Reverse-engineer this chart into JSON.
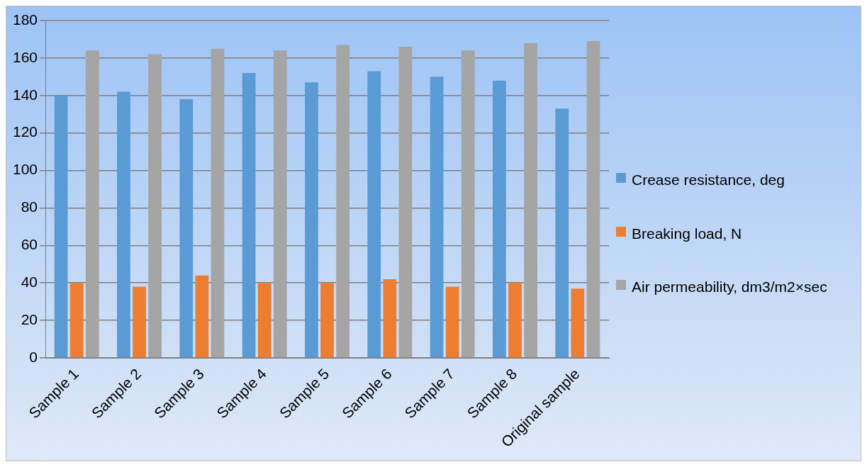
{
  "chart_data": {
    "type": "bar",
    "categories": [
      "Sample 1",
      "Sample 2",
      "Sample 3",
      "Sample 4",
      "Sample 5",
      "Sample 6",
      "Sample 7",
      "Sample 8",
      "Original sample"
    ],
    "series": [
      {
        "name": "Crease resistance, deg",
        "color": "#5b9bd5",
        "values": [
          140,
          142,
          138,
          152,
          147,
          153,
          150,
          148,
          133
        ]
      },
      {
        "name": "Breaking load, N",
        "color": "#ed7d31",
        "values": [
          40,
          38,
          44,
          40,
          40,
          42,
          38,
          40,
          37
        ]
      },
      {
        "name": "Air permeability, dm3/m2×sec",
        "color": "#a5a5a5",
        "values": [
          164,
          162,
          165,
          164,
          167,
          166,
          164,
          168,
          169
        ]
      }
    ],
    "ylim": [
      0,
      180
    ],
    "yticks": [
      0,
      20,
      40,
      60,
      80,
      100,
      120,
      140,
      160,
      180
    ],
    "grid": "y",
    "legend": "right"
  }
}
